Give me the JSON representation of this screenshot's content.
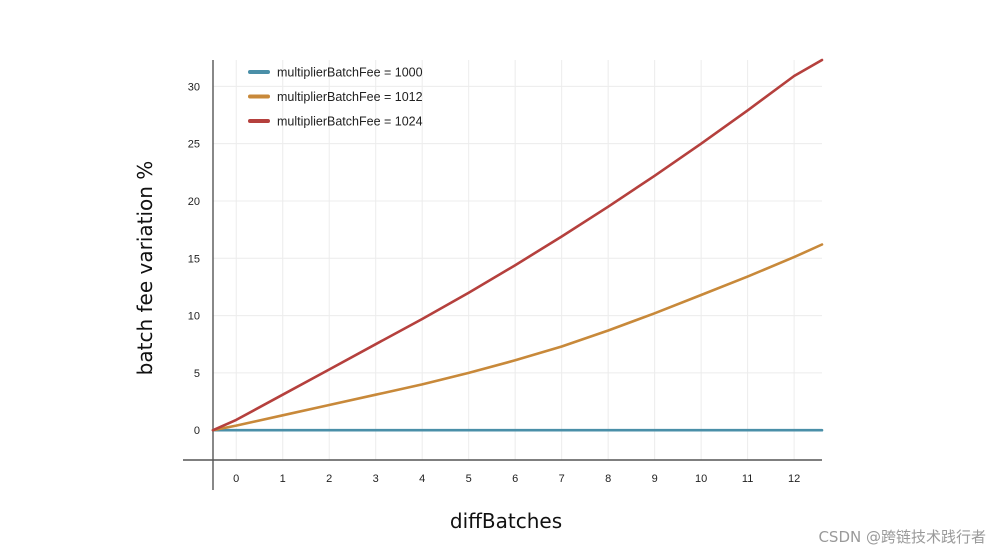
{
  "chart_data": {
    "type": "line",
    "xlabel": "diffBatches",
    "ylabel": "batch fee variation %",
    "x_ticks": [
      "0",
      "1",
      "2",
      "3",
      "4",
      "5",
      "6",
      "7",
      "8",
      "9",
      "10",
      "11",
      "12"
    ],
    "y_ticks": [
      "0",
      "5",
      "10",
      "15",
      "20",
      "25",
      "30"
    ],
    "xlim": [
      -0.5,
      12.6
    ],
    "ylim": [
      -2.6,
      32.3
    ],
    "grid": true,
    "legend_position": "top-left",
    "series": [
      {
        "name": "multiplierBatchFee = 1000",
        "color": "#4a8fa8",
        "x": [
          -0.5,
          0,
          1,
          2,
          3,
          4,
          5,
          6,
          7,
          8,
          9,
          10,
          11,
          12,
          12.6
        ],
        "y": [
          0,
          0,
          0,
          0,
          0,
          0,
          0,
          0,
          0,
          0,
          0,
          0,
          0,
          0,
          0
        ]
      },
      {
        "name": "multiplierBatchFee = 1012",
        "color": "#c8893a",
        "x": [
          -0.5,
          0,
          1,
          2,
          3,
          4,
          5,
          6,
          7,
          8,
          9,
          10,
          11,
          12,
          12.6
        ],
        "y": [
          0,
          0.4,
          1.3,
          2.2,
          3.1,
          4.0,
          5.0,
          6.1,
          7.3,
          8.7,
          10.2,
          11.8,
          13.4,
          15.1,
          16.2
        ]
      },
      {
        "name": "multiplierBatchFee = 1024",
        "color": "#b5403d",
        "x": [
          -0.5,
          0,
          1,
          2,
          3,
          4,
          5,
          6,
          7,
          8,
          9,
          10,
          11,
          12,
          12.6
        ],
        "y": [
          0,
          0.9,
          3.1,
          5.3,
          7.5,
          9.7,
          12.0,
          14.4,
          16.9,
          19.5,
          22.2,
          25.0,
          27.9,
          30.9,
          32.3
        ]
      }
    ]
  },
  "watermark": "CSDN @跨链技术践行者"
}
